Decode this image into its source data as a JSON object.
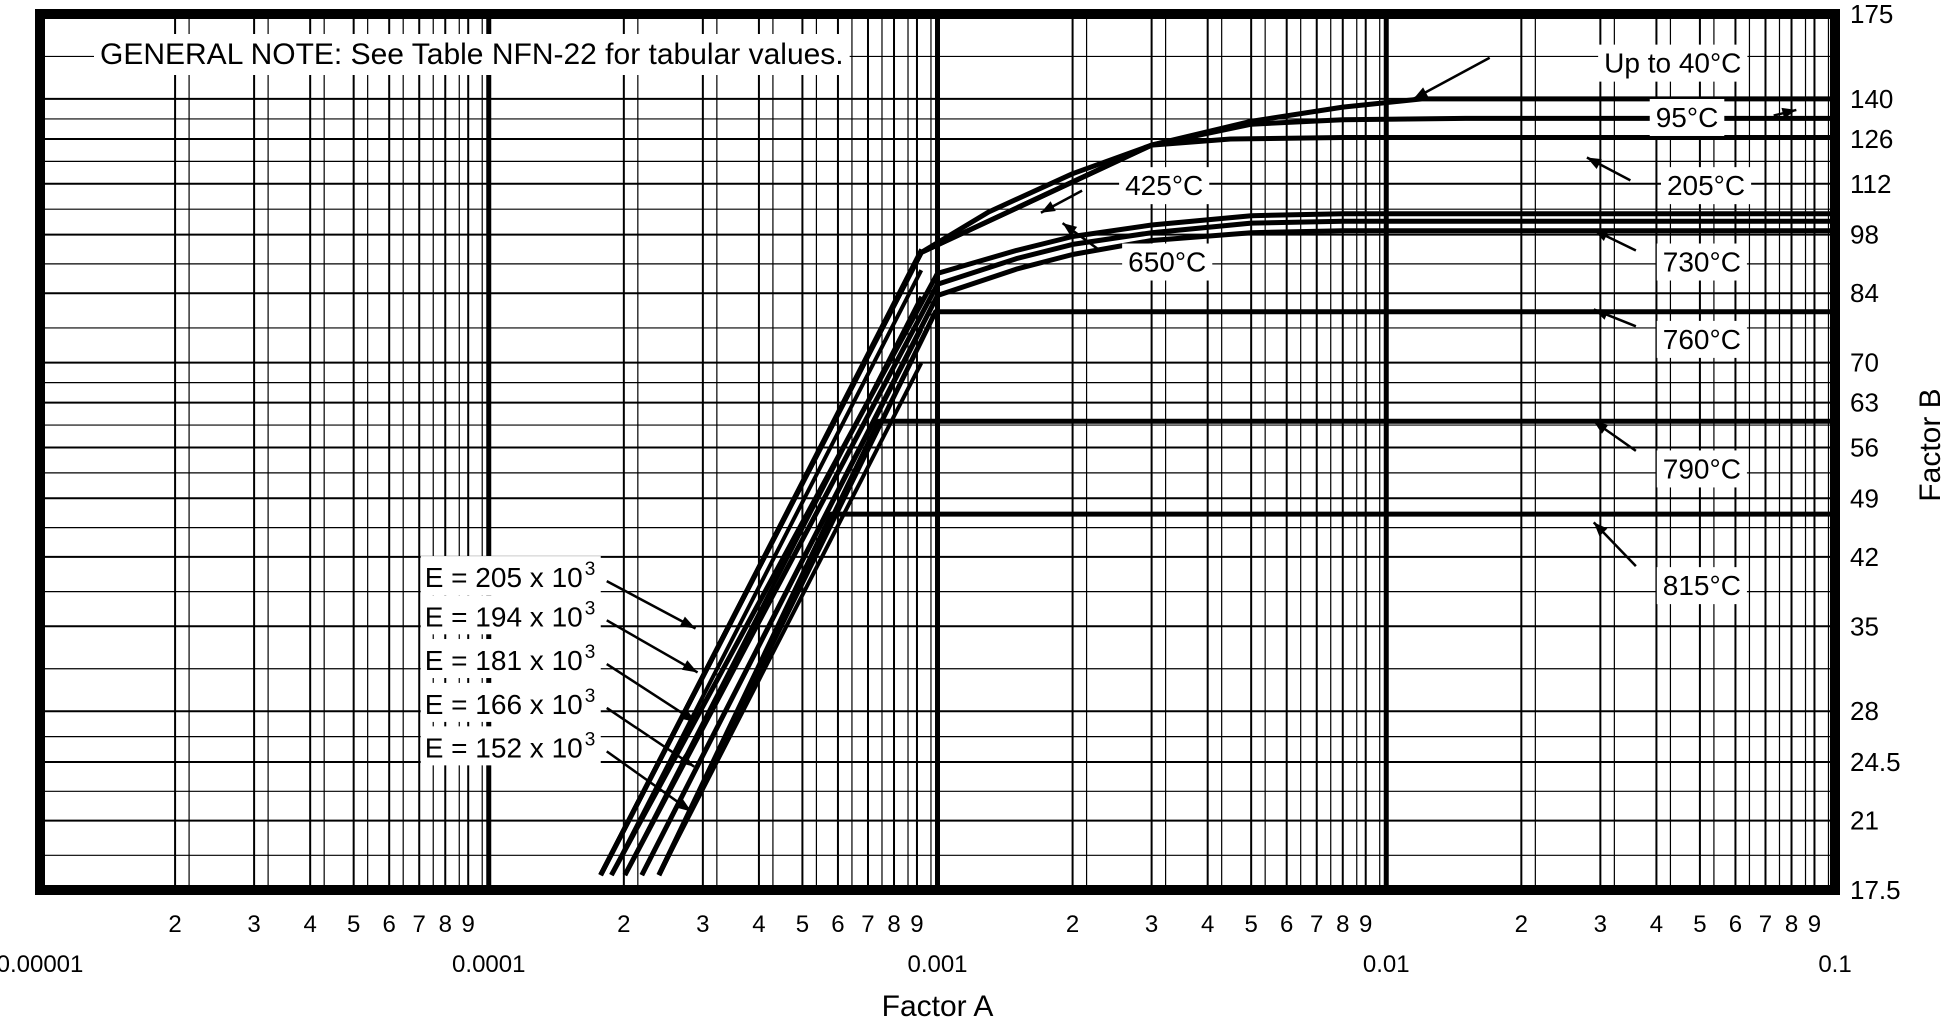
{
  "chart_data": {
    "type": "line",
    "title": "",
    "general_note": "GENERAL NOTE:  See Table NFN-22 for tabular values.",
    "xlabel": "Factor A",
    "ylabel": "Factor B",
    "x_scale": "log",
    "y_scale": "log",
    "xlim": [
      1e-05,
      0.1
    ],
    "ylim": [
      17.5,
      175
    ],
    "grid": true,
    "legend": "none",
    "x_decade_labels": [
      {
        "value": 1e-05,
        "label": "0.00001"
      },
      {
        "value": 0.0001,
        "label": "0.0001"
      },
      {
        "value": 0.001,
        "label": "0.001"
      },
      {
        "value": 0.01,
        "label": "0.01"
      },
      {
        "value": 0.1,
        "label": "0.1"
      }
    ],
    "x_minor_digits": [
      "2",
      "3",
      "4",
      "5",
      "6",
      "7",
      "8",
      "9"
    ],
    "y_ticks": [
      {
        "value": 175,
        "label": "175"
      },
      {
        "value": 140,
        "label": "140"
      },
      {
        "value": 126,
        "label": "126"
      },
      {
        "value": 112,
        "label": "112"
      },
      {
        "value": 98,
        "label": "98"
      },
      {
        "value": 84,
        "label": "84"
      },
      {
        "value": 70,
        "label": "70"
      },
      {
        "value": 63,
        "label": "63"
      },
      {
        "value": 56,
        "label": "56"
      },
      {
        "value": 49,
        "label": "49"
      },
      {
        "value": 42,
        "label": "42"
      },
      {
        "value": 35,
        "label": "35"
      },
      {
        "value": 28,
        "label": "28"
      },
      {
        "value": 24.5,
        "label": "24.5"
      },
      {
        "value": 21,
        "label": "21"
      },
      {
        "value": 17.5,
        "label": "17.5"
      }
    ],
    "series": [
      {
        "name": "Up to 40°C",
        "knee_a": 0.00092,
        "knee_b": 93.5,
        "x": [
          0.00092,
          0.0013,
          0.002,
          0.003,
          0.005,
          0.008,
          0.012,
          0.02,
          0.1
        ],
        "y": [
          93.5,
          104,
          115,
          124,
          132,
          137,
          140,
          140,
          140
        ]
      },
      {
        "name": "95°C",
        "knee_a": 0.00092,
        "knee_b": 93.5,
        "x": [
          0.00092,
          0.003,
          0.005,
          0.008,
          0.015,
          0.1
        ],
        "y": [
          93.5,
          124,
          131,
          132.5,
          133,
          133
        ]
      },
      {
        "name": "205°C",
        "knee_a": 0.00092,
        "knee_b": 93.5,
        "x": [
          0.00092,
          0.003,
          0.0045,
          0.008,
          0.1
        ],
        "y": [
          93.5,
          124,
          126,
          126.5,
          126.5
        ]
      },
      {
        "name": "425°C",
        "knee_a": 0.001,
        "knee_b": 88.5,
        "x": [
          0.001,
          0.0015,
          0.002,
          0.003,
          0.005,
          0.008,
          0.1
        ],
        "y": [
          88.5,
          94,
          97.5,
          100.5,
          103,
          103.5,
          103.5
        ]
      },
      {
        "name": "650°C",
        "knee_a": 0.001,
        "knee_b": 86,
        "x": [
          0.001,
          0.0015,
          0.002,
          0.003,
          0.005,
          0.008,
          0.1
        ],
        "y": [
          86,
          92,
          95.5,
          98.5,
          101,
          101.5,
          101.5
        ]
      },
      {
        "name": "730°C",
        "knee_a": 0.001,
        "knee_b": 83.5,
        "x": [
          0.001,
          0.0015,
          0.002,
          0.003,
          0.005,
          0.008,
          0.1
        ],
        "y": [
          83.5,
          89.5,
          93,
          96.5,
          98.5,
          99,
          99
        ]
      },
      {
        "name": "760°C",
        "knee_a": 0.00099,
        "knee_b": 80,
        "x": [
          0.00099,
          0.1
        ],
        "y": [
          80,
          80
        ]
      },
      {
        "name": "790°C",
        "knee_a": 0.00074,
        "knee_b": 60,
        "x": [
          0.00074,
          0.1
        ],
        "y": [
          60,
          60
        ]
      },
      {
        "name": "815°C",
        "knee_a": 0.00058,
        "knee_b": 47,
        "x": [
          0.00058,
          0.1
        ],
        "y": [
          47,
          47
        ]
      }
    ],
    "labels": [
      {
        "text": "Up to 40°C",
        "x": 0.0435,
        "y": 154,
        "anchor": "middle",
        "leader": [
          0.017,
          156,
          0.0115,
          140
        ]
      },
      {
        "text": "95°C",
        "x": 0.0468,
        "y": 133.5,
        "anchor": "middle",
        "leader": [
          0.073,
          134,
          0.082,
          136
        ]
      },
      {
        "name": "205°C",
        "text": "205°C",
        "x": 0.0516,
        "y": 111.6,
        "anchor": "middle",
        "leader": [
          0.035,
          113,
          0.028,
          120
        ]
      },
      {
        "text": "425°C",
        "x": 0.0032,
        "y": 111.6,
        "anchor": "middle",
        "leader": [
          0.0021,
          110,
          0.0017,
          103.8
        ]
      },
      {
        "text": "650°C",
        "x": 0.00325,
        "y": 91.3,
        "anchor": "middle",
        "leader": [
          0.0023,
          94,
          0.0019,
          101
        ]
      },
      {
        "text": "730°C",
        "x": 0.0505,
        "y": 91.3,
        "anchor": "middle",
        "leader": [
          0.036,
          94,
          0.029,
          99.2
        ]
      },
      {
        "text": "760°C",
        "x": 0.0505,
        "y": 74.5,
        "anchor": "middle",
        "leader": [
          0.036,
          77,
          0.029,
          80.5
        ]
      },
      {
        "text": "790°C",
        "x": 0.0505,
        "y": 53,
        "anchor": "middle",
        "leader": [
          0.036,
          55.5,
          0.029,
          60
        ]
      },
      {
        "text": "815°C",
        "x": 0.0505,
        "y": 39,
        "anchor": "middle",
        "leader": [
          0.036,
          41,
          0.029,
          46
        ]
      }
    ],
    "modulus_lines": [
      {
        "label": "E = 205 x 10",
        "sup": "3",
        "E": 205000,
        "label_x": 7.2e-05,
        "label_y": 38.8,
        "arrow_to": [
          0.000289,
          34.8
        ]
      },
      {
        "label": "E = 194 x 10",
        "sup": "3",
        "E": 194000,
        "label_x": 7.2e-05,
        "label_y": 35.0,
        "arrow_to": [
          0.000292,
          31.0
        ]
      },
      {
        "label": "E = 181 x 10",
        "sup": "3",
        "E": 181000,
        "label_x": 7.2e-05,
        "label_y": 31.2,
        "arrow_to": [
          0.00029,
          27.2
        ]
      },
      {
        "label": "E = 166 x 10",
        "sup": "3",
        "E": 166000,
        "label_x": 7.2e-05,
        "label_y": 27.8,
        "arrow_to": [
          0.000287,
          24.2
        ]
      },
      {
        "label": "E = 152 x 10",
        "sup": "3",
        "E": 152000,
        "label_x": 7.2e-05,
        "label_y": 24.8,
        "arrow_to": [
          0.000283,
          21.5
        ]
      }
    ]
  }
}
